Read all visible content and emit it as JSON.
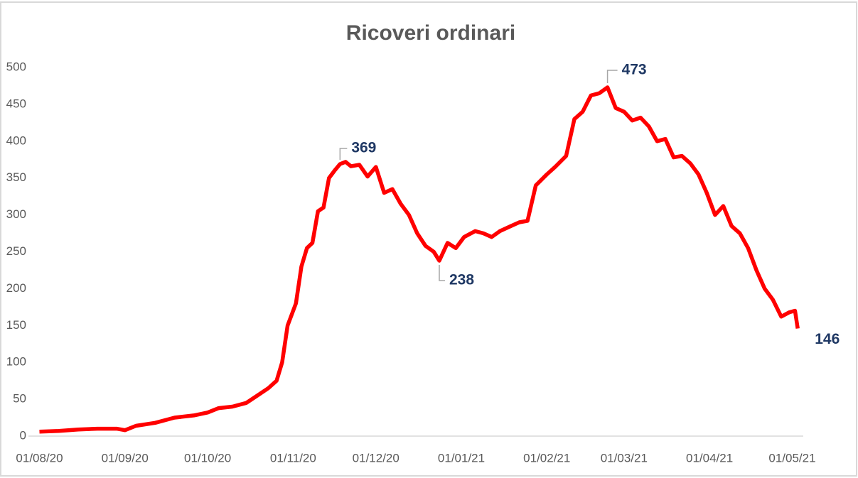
{
  "chart_data": {
    "type": "line",
    "title": "Ricoveri ordinari",
    "series": [
      {
        "name": "Ricoveri ordinari",
        "color": "#ff0000",
        "x": [
          "01/08/20",
          "08/08/20",
          "15/08/20",
          "22/08/20",
          "29/08/20",
          "01/09/20",
          "05/09/20",
          "12/09/20",
          "19/09/20",
          "26/09/20",
          "01/10/20",
          "05/10/20",
          "10/10/20",
          "15/10/20",
          "19/10/20",
          "23/10/20",
          "26/10/20",
          "28/10/20",
          "30/10/20",
          "02/11/20",
          "04/11/20",
          "06/11/20",
          "08/11/20",
          "10/11/20",
          "12/11/20",
          "14/11/20",
          "16/11/20",
          "18/11/20",
          "20/11/20",
          "22/11/20",
          "25/11/20",
          "28/11/20",
          "01/12/20",
          "04/12/20",
          "07/12/20",
          "10/12/20",
          "13/12/20",
          "16/12/20",
          "19/12/20",
          "22/12/20",
          "24/12/20",
          "27/12/20",
          "30/12/20",
          "02/01/21",
          "06/01/21",
          "09/01/21",
          "12/01/21",
          "15/01/21",
          "19/01/21",
          "22/01/21",
          "25/01/21",
          "28/01/21",
          "01/02/21",
          "04/02/21",
          "08/02/21",
          "11/02/21",
          "14/02/21",
          "17/02/21",
          "20/02/21",
          "23/02/21",
          "26/02/21",
          "01/03/21",
          "04/03/21",
          "07/03/21",
          "10/03/21",
          "13/03/21",
          "16/03/21",
          "19/03/21",
          "22/03/21",
          "25/03/21",
          "28/03/21",
          "31/03/21",
          "03/04/21",
          "06/04/21",
          "09/04/21",
          "12/04/21",
          "15/04/21",
          "18/04/21",
          "21/04/21",
          "24/04/21",
          "27/04/21",
          "30/04/21",
          "02/05/21",
          "03/05/21"
        ],
        "values": [
          6,
          7,
          9,
          10,
          10,
          8,
          14,
          18,
          25,
          28,
          32,
          38,
          40,
          45,
          55,
          65,
          75,
          100,
          150,
          180,
          230,
          255,
          262,
          305,
          310,
          350,
          360,
          369,
          372,
          366,
          368,
          352,
          365,
          330,
          335,
          315,
          300,
          275,
          258,
          250,
          238,
          262,
          255,
          270,
          278,
          275,
          270,
          278,
          285,
          290,
          292,
          340,
          355,
          365,
          380,
          430,
          440,
          462,
          465,
          473,
          445,
          440,
          428,
          432,
          420,
          400,
          403,
          378,
          380,
          370,
          355,
          330,
          300,
          312,
          285,
          275,
          255,
          225,
          200,
          185,
          162,
          168,
          170,
          146
        ]
      }
    ],
    "labels_at": [
      "18/11/20",
      "24/12/20",
      "23/02/21",
      "03/05/21"
    ],
    "xlim": [
      "28/07/20",
      "05/05/21"
    ],
    "xticks": [
      "01/08/20",
      "01/09/20",
      "01/10/20",
      "01/11/20",
      "01/12/20",
      "01/01/21",
      "01/02/21",
      "01/03/21",
      "01/04/21",
      "01/05/21"
    ],
    "ylim": [
      0,
      500
    ],
    "yticks": [
      0,
      50,
      100,
      150,
      200,
      250,
      300,
      350,
      400,
      450,
      500
    ],
    "grid": false
  }
}
